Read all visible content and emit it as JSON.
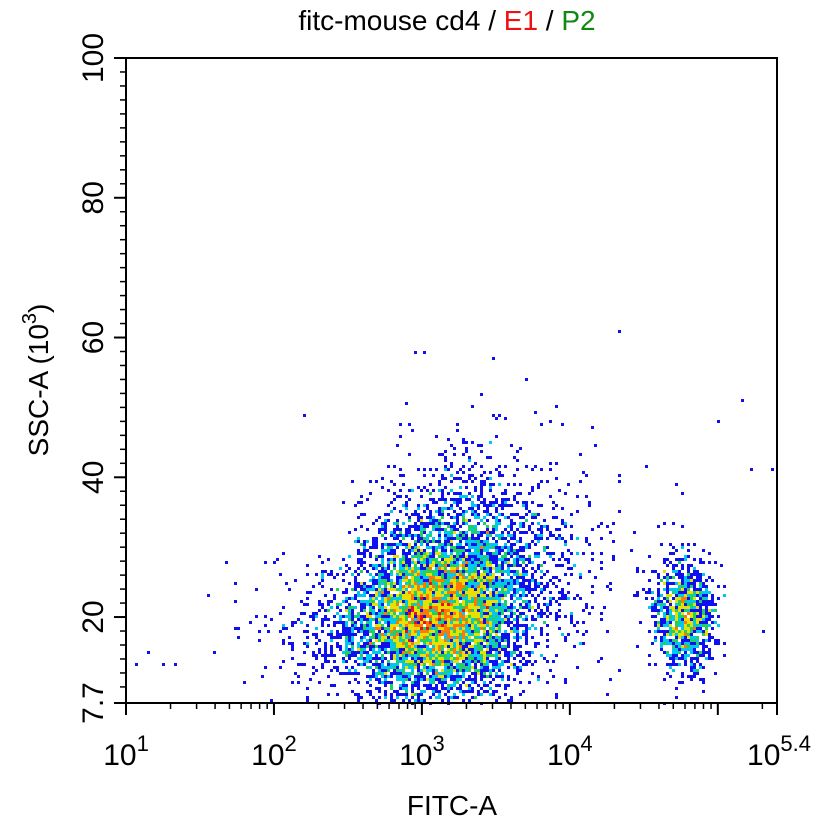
{
  "chart_data": {
    "type": "scatter",
    "subtype": "flow-cytometry-density-dot-plot",
    "title_parts": [
      {
        "text": "fitc-mouse cd4",
        "color": "#000000"
      },
      {
        "text": " / ",
        "color": "#000000"
      },
      {
        "text": "E1",
        "color": "#ee1111"
      },
      {
        "text": " / ",
        "color": "#000000"
      },
      {
        "text": "P2",
        "color": "#118811"
      }
    ],
    "xlabel": "FITC-A",
    "ylabel": "SSC-A  (10",
    "ylabel_exp": "3",
    "ylabel_close": ")",
    "x_scale": "log10",
    "xlim": [
      10,
      251189
    ],
    "x_ticks": [
      {
        "base": "10",
        "exp": "1",
        "value": 10
      },
      {
        "base": "10",
        "exp": "2",
        "value": 100
      },
      {
        "base": "10",
        "exp": "3",
        "value": 1000
      },
      {
        "base": "10",
        "exp": "4",
        "value": 10000
      },
      {
        "base": "10",
        "exp": "5.4",
        "value": 251189
      }
    ],
    "y_scale": "linear",
    "ylim": [
      7.7,
      100
    ],
    "y_ticks": [
      {
        "label": "7.7",
        "value": 7.7
      },
      {
        "label": "20",
        "value": 20
      },
      {
        "label": "40",
        "value": 40
      },
      {
        "label": "60",
        "value": 60
      },
      {
        "label": "80",
        "value": 80
      },
      {
        "label": "100",
        "value": 100
      }
    ],
    "grid": false,
    "colormap": [
      "#1010ee",
      "#00c8ee",
      "#20d060",
      "#e8e000",
      "#ff7800",
      "#ee1010"
    ],
    "populations": [
      {
        "x_center": 1300,
        "y_center": 20,
        "x_log_sd": 0.28,
        "y_sd": 5.5,
        "weight": 0.62
      },
      {
        "x_center": 1800,
        "y_center": 30,
        "x_log_sd": 0.3,
        "y_sd": 6.5,
        "weight": 0.14
      },
      {
        "x_center": 500,
        "y_center": 18,
        "x_log_sd": 0.38,
        "y_sd": 4.5,
        "weight": 0.07
      },
      {
        "x_center": 5000,
        "y_center": 28,
        "x_log_sd": 0.35,
        "y_sd": 8.0,
        "weight": 0.05
      },
      {
        "x_center": 60000,
        "y_center": 20,
        "x_log_sd": 0.1,
        "y_sd": 4.0,
        "weight": 0.12
      }
    ],
    "total_events": 9000,
    "outliers": [
      {
        "x": 12,
        "y": 13
      },
      {
        "x": 14,
        "y": 15
      },
      {
        "x": 18,
        "y": 13
      },
      {
        "x": 22,
        "y": 13
      },
      {
        "x": 40,
        "y": 15
      },
      {
        "x": 48,
        "y": 28
      },
      {
        "x": 55,
        "y": 25
      },
      {
        "x": 160,
        "y": 49
      },
      {
        "x": 900,
        "y": 58
      },
      {
        "x": 1050,
        "y": 58
      },
      {
        "x": 3000,
        "y": 57
      },
      {
        "x": 5000,
        "y": 54
      },
      {
        "x": 22000,
        "y": 61
      },
      {
        "x": 150000,
        "y": 51
      },
      {
        "x": 170000,
        "y": 41
      },
      {
        "x": 230000,
        "y": 41
      },
      {
        "x": 200000,
        "y": 18
      },
      {
        "x": 100000,
        "y": 48
      },
      {
        "x": 8000,
        "y": 50
      },
      {
        "x": 14000,
        "y": 47
      },
      {
        "x": 2500,
        "y": 52
      }
    ]
  }
}
